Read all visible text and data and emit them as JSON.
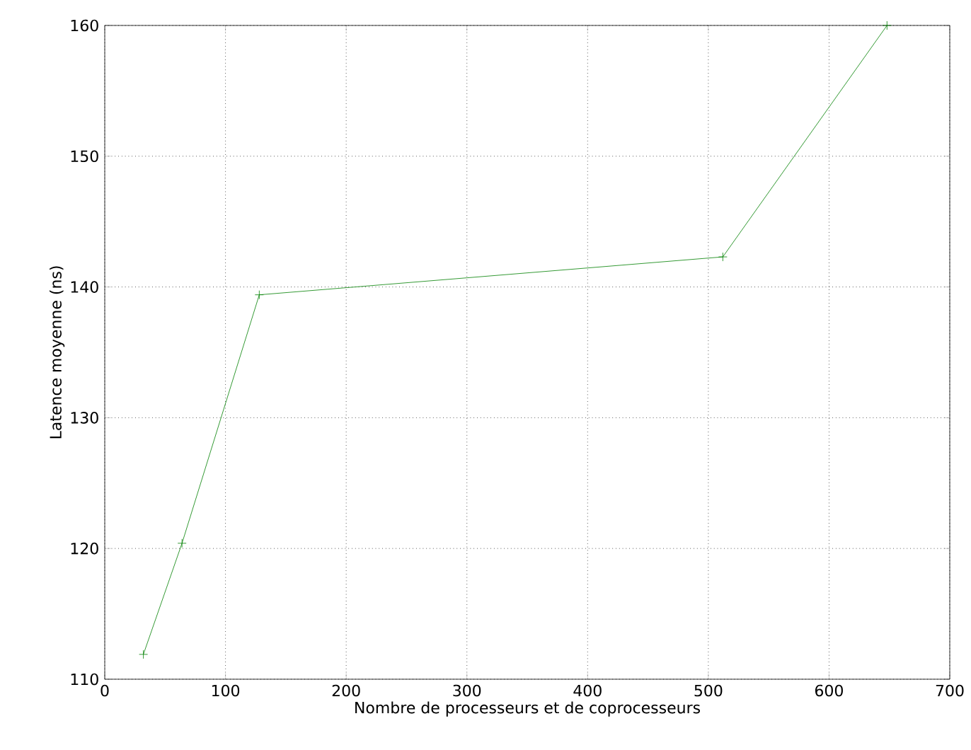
{
  "chart_data": {
    "type": "line",
    "xlabel": "Nombre de processeurs et de coprocesseurs",
    "ylabel": "Latence moyenne (ns)",
    "x": [
      32,
      64,
      128,
      512,
      648
    ],
    "series": [
      {
        "color": "#008000",
        "values": [
          111.9,
          120.4,
          139.4,
          142.3,
          160
        ]
      }
    ],
    "xlim": [
      0,
      700
    ],
    "xticks": [
      0,
      100,
      200,
      300,
      400,
      500,
      600,
      700
    ],
    "ylim": [
      110,
      160
    ],
    "yticks": [
      110,
      120,
      130,
      140,
      150,
      160
    ],
    "grid": true,
    "marker": "cross",
    "line_style": "solid"
  }
}
